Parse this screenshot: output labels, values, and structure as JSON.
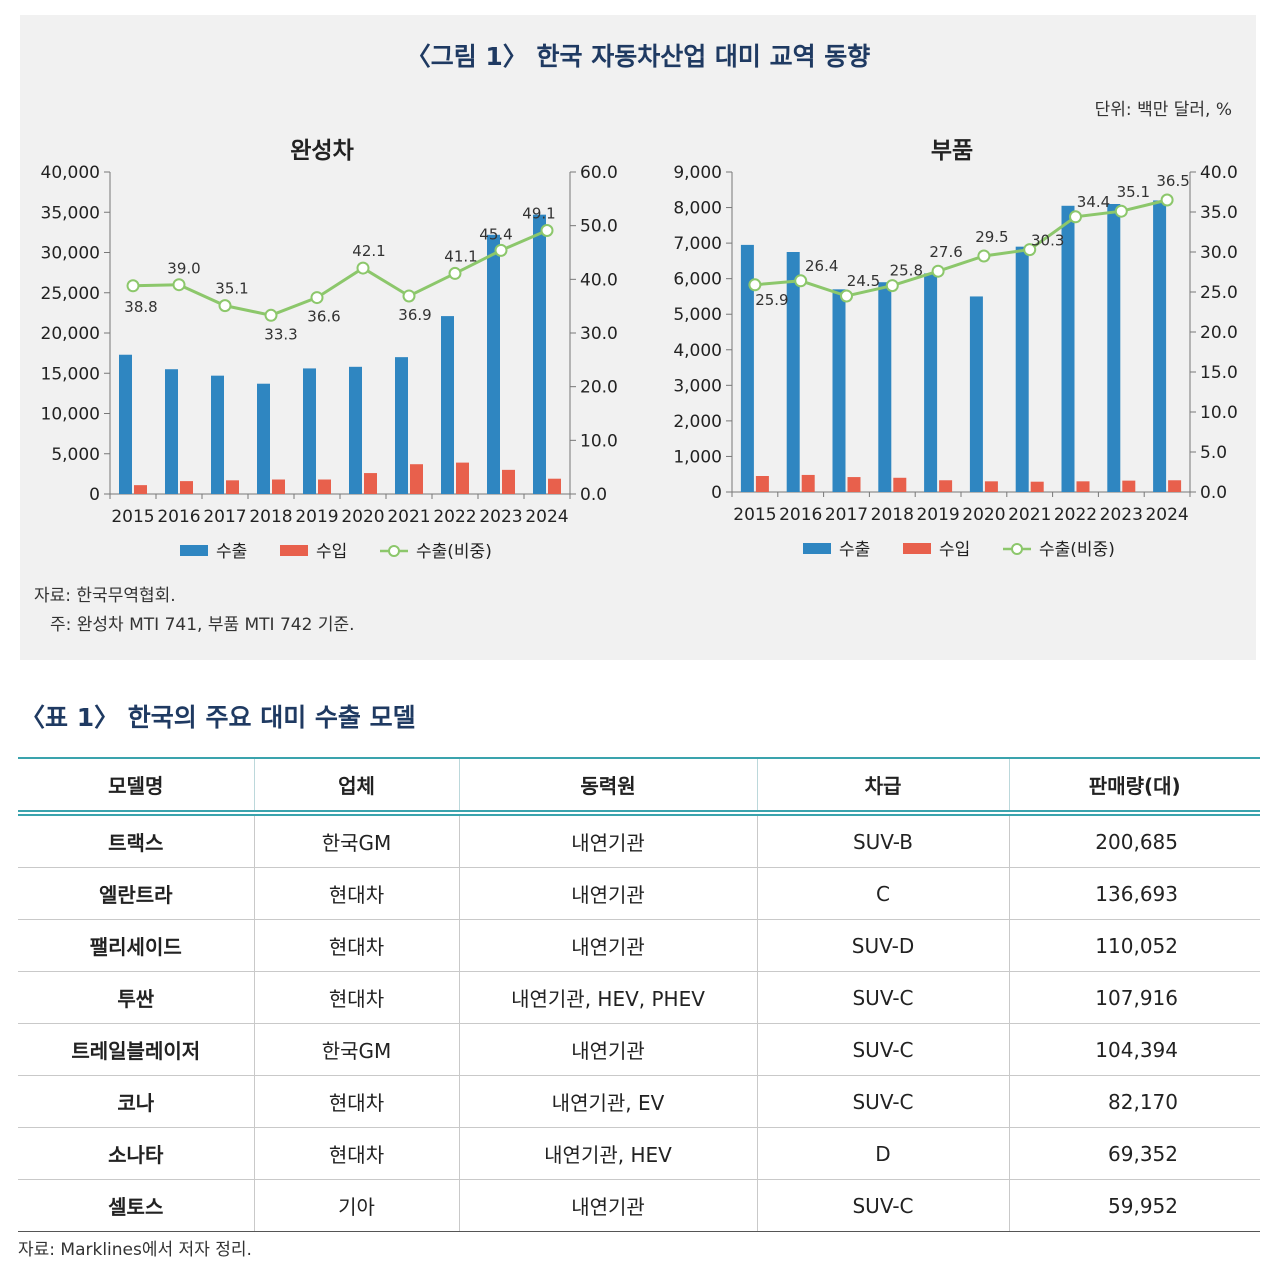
{
  "figure": {
    "title": "〈그림 1〉 한국 자동차산업 대미 교역 동향",
    "unit": "단위: 백만 달러, %",
    "source": "자료: 한국무역협회.",
    "note": "주: 완성차 MTI 741, 부품 MTI 742 기준."
  },
  "chart_data": [
    {
      "type": "bar",
      "title": "완성차",
      "categories": [
        "2015",
        "2016",
        "2017",
        "2018",
        "2019",
        "2020",
        "2021",
        "2022",
        "2023",
        "2024"
      ],
      "series": [
        {
          "name": "수출",
          "axis": "left",
          "type": "bar",
          "color": "#2f86c1",
          "values": [
            17300,
            15500,
            14700,
            13700,
            15600,
            15800,
            17000,
            22100,
            32200,
            34700
          ]
        },
        {
          "name": "수입",
          "axis": "left",
          "type": "bar",
          "color": "#e8604c",
          "values": [
            1100,
            1600,
            1700,
            1800,
            1800,
            2600,
            3700,
            3900,
            3000,
            1900
          ]
        },
        {
          "name": "수출(비중)",
          "axis": "right",
          "type": "line",
          "color": "#8cc76b",
          "values": [
            38.8,
            39.0,
            35.1,
            33.3,
            36.6,
            42.1,
            36.9,
            41.1,
            45.4,
            49.1
          ]
        }
      ],
      "left_ticks": [
        "0",
        "5,000",
        "10,000",
        "15,000",
        "20,000",
        "25,000",
        "30,000",
        "35,000",
        "40,000"
      ],
      "right_ticks": [
        "0.0",
        "10.0",
        "20.0",
        "30.0",
        "40.0",
        "50.0",
        "60.0"
      ],
      "ylim_left": [
        0,
        40000
      ],
      "ylim_right": [
        0,
        60
      ],
      "line_labels": [
        "38.8",
        "39.0",
        "35.1",
        "33.3",
        "36.6",
        "42.1",
        "36.9",
        "41.1",
        "45.4",
        "49.1"
      ],
      "legend": [
        "수출",
        "수입",
        "수출(비중)"
      ],
      "legend_position": "bottom"
    },
    {
      "type": "bar",
      "title": "부품",
      "categories": [
        "2015",
        "2016",
        "2017",
        "2018",
        "2019",
        "2020",
        "2021",
        "2022",
        "2023",
        "2024"
      ],
      "series": [
        {
          "name": "수출",
          "axis": "left",
          "type": "bar",
          "color": "#2f86c1",
          "values": [
            6950,
            6750,
            5700,
            5900,
            6150,
            5500,
            6900,
            8050,
            8100,
            8200
          ]
        },
        {
          "name": "수입",
          "axis": "left",
          "type": "bar",
          "color": "#e8604c",
          "values": [
            450,
            480,
            420,
            400,
            330,
            300,
            290,
            300,
            320,
            330
          ]
        },
        {
          "name": "수출(비중)",
          "axis": "right",
          "type": "line",
          "color": "#8cc76b",
          "values": [
            25.9,
            26.4,
            24.5,
            25.8,
            27.6,
            29.5,
            30.3,
            34.4,
            35.1,
            36.5
          ]
        }
      ],
      "left_ticks": [
        "0",
        "1,000",
        "2,000",
        "3,000",
        "4,000",
        "5,000",
        "6,000",
        "7,000",
        "8,000",
        "9,000"
      ],
      "right_ticks": [
        "0.0",
        "5.0",
        "10.0",
        "15.0",
        "20.0",
        "25.0",
        "30.0",
        "35.0",
        "40.0"
      ],
      "ylim_left": [
        0,
        9000
      ],
      "ylim_right": [
        0,
        40
      ],
      "line_labels": [
        "25.9",
        "26.4",
        "24.5",
        "25.8",
        "27.6",
        "29.5",
        "30.3",
        "34.4",
        "35.1",
        "36.5"
      ],
      "legend": [
        "수출",
        "수입",
        "수출(비중)"
      ],
      "legend_position": "bottom"
    }
  ],
  "table": {
    "title": "〈표 1〉 한국의 주요 대미 수출 모델",
    "headers": [
      "모델명",
      "업체",
      "동력원",
      "차급",
      "판매량(대)"
    ],
    "rows": [
      [
        "트랙스",
        "한국GM",
        "내연기관",
        "SUV-B",
        "200,685"
      ],
      [
        "엘란트라",
        "현대차",
        "내연기관",
        "C",
        "136,693"
      ],
      [
        "팰리세이드",
        "현대차",
        "내연기관",
        "SUV-D",
        "110,052"
      ],
      [
        "투싼",
        "현대차",
        "내연기관, HEV, PHEV",
        "SUV-C",
        "107,916"
      ],
      [
        "트레일블레이저",
        "한국GM",
        "내연기관",
        "SUV-C",
        "104,394"
      ],
      [
        "코나",
        "현대차",
        "내연기관, EV",
        "SUV-C",
        "82,170"
      ],
      [
        "소나타",
        "현대차",
        "내연기관, HEV",
        "D",
        "69,352"
      ],
      [
        "셀토스",
        "기아",
        "내연기관",
        "SUV-C",
        "59,952"
      ]
    ],
    "source": "자료: Marklines에서 저자 정리."
  }
}
